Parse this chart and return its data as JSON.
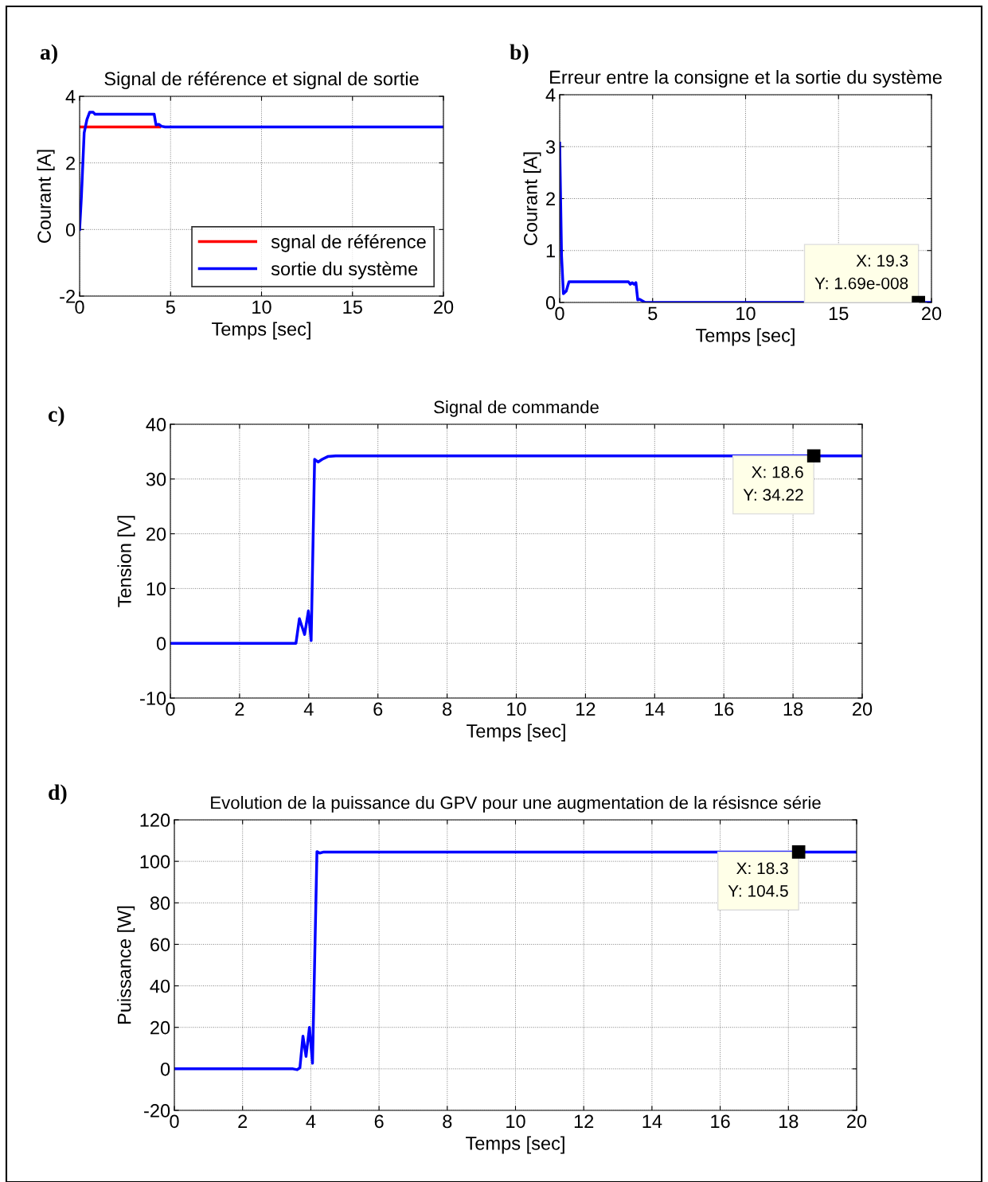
{
  "chart_data": [
    {
      "type": "line",
      "title": "Signal de référence et signal de sortie",
      "xlabel": "Temps [sec]",
      "ylabel": "Courant [A]",
      "xlim": [
        0,
        20
      ],
      "ylim": [
        -2,
        4
      ],
      "xticks": [
        0,
        5,
        10,
        15,
        20
      ],
      "yticks": [
        -2,
        0,
        2,
        4
      ],
      "grid": true,
      "legend": "bottom right",
      "annotations": [
        "a)"
      ],
      "series": [
        {
          "name": "sgnal de référence",
          "color": "#ff0000",
          "x": [
            0,
            4.4
          ],
          "values": [
            3.08,
            3.08
          ]
        },
        {
          "name": "sortie du système",
          "color": "#0000ff",
          "x": [
            0,
            0.1,
            0.25,
            0.4,
            0.55,
            0.75,
            0.85,
            4.1,
            4.2,
            4.35,
            4.5,
            4.7,
            20
          ],
          "values": [
            0,
            1.0,
            2.9,
            3.3,
            3.52,
            3.52,
            3.46,
            3.46,
            3.14,
            3.16,
            3.1,
            3.08,
            3.08
          ]
        }
      ]
    },
    {
      "type": "line",
      "title": "Erreur entre la consigne et la sortie du système",
      "xlabel": "Temps [sec]",
      "ylabel": "Courant [A]",
      "xlim": [
        0,
        20
      ],
      "ylim": [
        0,
        4
      ],
      "xticks": [
        0,
        5,
        10,
        15,
        20
      ],
      "yticks": [
        0,
        1,
        2,
        3,
        4
      ],
      "grid": true,
      "annotations": [
        "b)",
        {
          "text": "X: 19.3\nY: 1.69e-008",
          "x": 19.3,
          "y": 1.69e-08
        }
      ],
      "series": [
        {
          "color": "#0000ff",
          "x": [
            0,
            0.1,
            0.2,
            0.35,
            0.5,
            3.7,
            3.8,
            3.9,
            4.0,
            4.1,
            4.2,
            4.3,
            4.6,
            20
          ],
          "values": [
            3.07,
            0.9,
            0.17,
            0.22,
            0.4,
            0.4,
            0.35,
            0.38,
            0.35,
            0.38,
            0.05,
            0.06,
            0,
            0
          ]
        }
      ]
    },
    {
      "type": "line",
      "title": "Signal de commande",
      "xlabel": "Temps [sec]",
      "ylabel": "Tension [V]",
      "xlim": [
        0,
        20
      ],
      "ylim": [
        -10,
        40
      ],
      "xticks": [
        0,
        2,
        4,
        6,
        8,
        10,
        12,
        14,
        16,
        18,
        20
      ],
      "yticks": [
        -10,
        0,
        10,
        20,
        30,
        40
      ],
      "grid": true,
      "annotations": [
        "c)",
        {
          "text": "X: 18.6\nY: 34.22",
          "x": 18.6,
          "y": 34.22
        }
      ],
      "series": [
        {
          "color": "#0000ff",
          "x": [
            0,
            3.63,
            3.73,
            3.88,
            3.99,
            4.07,
            4.17,
            4.27,
            4.39,
            4.55,
            4.78,
            20
          ],
          "values": [
            0,
            0,
            4.5,
            1.6,
            5.9,
            0.5,
            33.6,
            33.1,
            33.6,
            34.1,
            34.22,
            34.22
          ]
        }
      ]
    },
    {
      "type": "line",
      "title": "Evolution de la puissance du GPV pour une augmentation de la résisnce série",
      "xlabel": "Temps [sec]",
      "ylabel": "Puissance [W]",
      "xlim": [
        0,
        20
      ],
      "ylim": [
        -20,
        120
      ],
      "xticks": [
        0,
        2,
        4,
        6,
        8,
        10,
        12,
        14,
        16,
        18,
        20
      ],
      "yticks": [
        -20,
        0,
        20,
        40,
        60,
        80,
        100,
        120
      ],
      "grid": true,
      "annotations": [
        "d)",
        {
          "text": "X: 18.3\nY: 104.5",
          "x": 18.3,
          "y": 104.5
        }
      ],
      "series": [
        {
          "color": "#0000ff",
          "x": [
            0,
            3.48,
            3.6,
            3.68,
            3.77,
            3.86,
            3.96,
            4.05,
            4.18,
            4.26,
            4.38,
            20
          ],
          "values": [
            0,
            0,
            -0.4,
            0.5,
            15.8,
            6.0,
            20,
            2.7,
            104.7,
            104,
            104.5,
            104.5
          ]
        }
      ]
    }
  ]
}
